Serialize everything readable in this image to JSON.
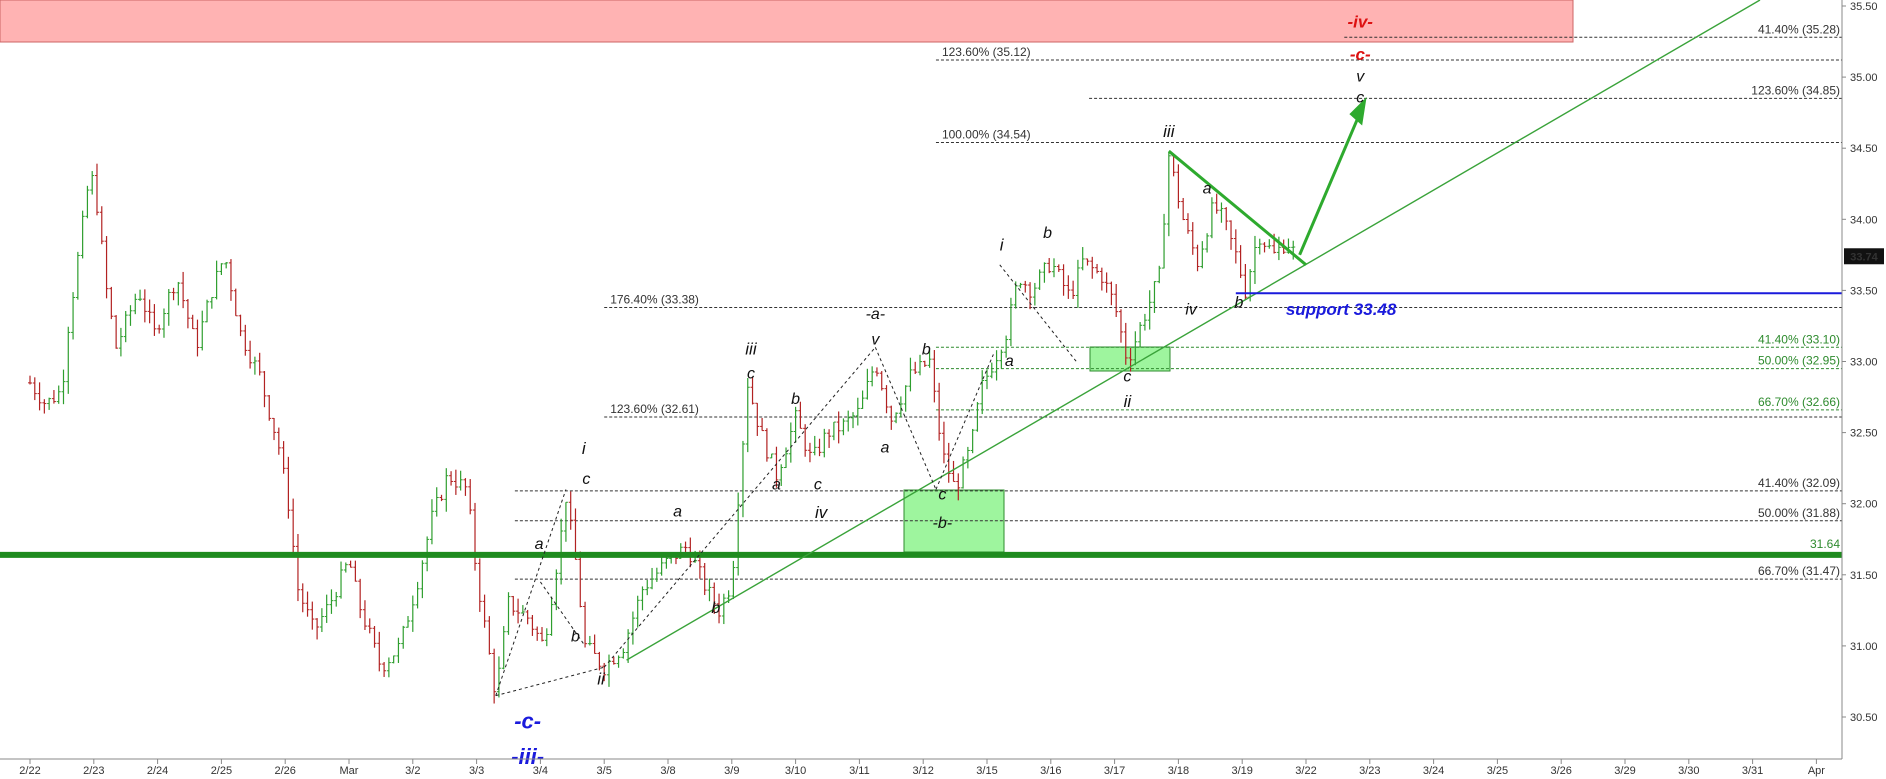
{
  "chart_data": {
    "type": "candlestick",
    "y_axis": {
      "range": [
        30.35,
        35.55
      ],
      "ticks": [
        "35.50",
        "35.00",
        "34.50",
        "34.00",
        "33.50",
        "33.00",
        "32.50",
        "32.00",
        "31.50",
        "31.00",
        "30.50"
      ],
      "last_price": "33.74"
    },
    "x_axis": {
      "tick_labels": [
        "2/22",
        "2/23",
        "2/24",
        "2/25",
        "2/26",
        "Mar",
        "3/2",
        "3/3",
        "3/4",
        "3/5",
        "3/8",
        "3/9",
        "3/10",
        "3/11",
        "3/12",
        "3/15",
        "3/16",
        "3/17",
        "3/18",
        "3/19",
        "3/22",
        "3/23",
        "3/24",
        "3/25",
        "3/26",
        "3/29",
        "3/30",
        "3/31",
        "Apr"
      ]
    },
    "price_path": [
      [
        0,
        32.85
      ],
      [
        0.25,
        32.7
      ],
      [
        0.5,
        32.8
      ],
      [
        0.6,
        33.25
      ],
      [
        0.9,
        34.2
      ],
      [
        1.0,
        34.3
      ],
      [
        1.2,
        33.5
      ],
      [
        1.35,
        33.1
      ],
      [
        1.7,
        33.5
      ],
      [
        1.95,
        33.2
      ],
      [
        2.3,
        33.6
      ],
      [
        2.6,
        33.1
      ],
      [
        2.85,
        33.5
      ],
      [
        3.05,
        33.75
      ],
      [
        3.3,
        33.2
      ],
      [
        3.6,
        32.9
      ],
      [
        3.9,
        32.4
      ],
      [
        4.05,
        32.0
      ],
      [
        4.2,
        31.4
      ],
      [
        4.45,
        31.1
      ],
      [
        4.7,
        31.3
      ],
      [
        5.0,
        31.6
      ],
      [
        5.15,
        31.3
      ],
      [
        5.5,
        30.85
      ],
      [
        5.8,
        31.0
      ],
      [
        6.1,
        31.5
      ],
      [
        6.3,
        31.9
      ],
      [
        6.55,
        32.2
      ],
      [
        6.85,
        32.1
      ],
      [
        7.0,
        31.5
      ],
      [
        7.3,
        30.65
      ],
      [
        7.5,
        31.3
      ],
      [
        7.8,
        31.2
      ],
      [
        8.05,
        31.0
      ],
      [
        8.3,
        31.7
      ],
      [
        8.4,
        32.05
      ],
      [
        8.55,
        31.6
      ],
      [
        8.7,
        31.0
      ],
      [
        9.0,
        30.85
      ],
      [
        9.3,
        31.0
      ],
      [
        9.6,
        31.4
      ],
      [
        10.0,
        31.6
      ],
      [
        10.3,
        31.7
      ],
      [
        10.6,
        31.4
      ],
      [
        10.8,
        31.25
      ],
      [
        11.0,
        31.45
      ],
      [
        11.1,
        32.05
      ],
      [
        11.25,
        32.85
      ],
      [
        11.45,
        32.5
      ],
      [
        11.7,
        32.2
      ],
      [
        12.0,
        32.6
      ],
      [
        12.25,
        32.3
      ],
      [
        12.5,
        32.5
      ],
      [
        12.75,
        32.55
      ],
      [
        13.0,
        32.65
      ],
      [
        13.25,
        33.0
      ],
      [
        13.5,
        32.6
      ],
      [
        13.8,
        32.9
      ],
      [
        14.1,
        33.0
      ],
      [
        14.3,
        32.35
      ],
      [
        14.5,
        32.1
      ],
      [
        14.75,
        32.4
      ],
      [
        14.9,
        32.8
      ],
      [
        15.1,
        33.0
      ],
      [
        15.3,
        33.2
      ],
      [
        15.5,
        33.6
      ],
      [
        15.7,
        33.5
      ],
      [
        16.0,
        33.7
      ],
      [
        16.3,
        33.45
      ],
      [
        16.5,
        33.7
      ],
      [
        16.8,
        33.6
      ],
      [
        17.0,
        33.4
      ],
      [
        17.2,
        33.0
      ],
      [
        17.45,
        33.3
      ],
      [
        17.7,
        33.6
      ],
      [
        17.85,
        34.45
      ],
      [
        18.1,
        33.95
      ],
      [
        18.3,
        33.7
      ],
      [
        18.55,
        34.1
      ],
      [
        18.7,
        34.0
      ],
      [
        18.9,
        33.75
      ],
      [
        19.05,
        33.5
      ],
      [
        19.25,
        33.9
      ],
      [
        19.5,
        33.75
      ],
      [
        19.7,
        33.85
      ],
      [
        19.85,
        33.74
      ]
    ],
    "annotations": {
      "fib_levels": [
        {
          "label": "41.40% (35.28)",
          "value": 35.28,
          "x_start": 20.6,
          "color": "#333333"
        },
        {
          "label": "123.60% (35.12)",
          "value": 35.12,
          "x_start": 14.2,
          "color": "#333333"
        },
        {
          "label": "123.60% (34.85)",
          "value": 34.85,
          "x_start": 16.6,
          "color": "#333333"
        },
        {
          "label": "100.00% (34.54)",
          "value": 34.54,
          "x_start": 14.2,
          "color": "#333333"
        },
        {
          "label": "176.40% (33.38)",
          "value": 33.38,
          "x_start": 9.0,
          "color": "#333333"
        },
        {
          "label": "41.40% (33.10)",
          "value": 33.1,
          "x_start": 14.2,
          "color": "#2e8b2e"
        },
        {
          "label": "50.00% (32.95)",
          "value": 32.95,
          "x_start": 14.2,
          "color": "#2e8b2e"
        },
        {
          "label": "66.70% (32.66)",
          "value": 32.66,
          "x_start": 14.2,
          "color": "#2e8b2e"
        },
        {
          "label": "123.60% (32.61)",
          "value": 32.61,
          "x_start": 9.0,
          "color": "#333333"
        },
        {
          "label": "41.40% (32.09)",
          "value": 32.09,
          "x_start": 7.6,
          "color": "#333333"
        },
        {
          "label": "50.00% (31.88)",
          "value": 31.88,
          "x_start": 7.6,
          "color": "#333333"
        },
        {
          "label": "66.70% (31.47)",
          "value": 31.47,
          "x_start": 7.6,
          "color": "#333333"
        }
      ],
      "horizontal_line_label": "31.64",
      "horizontal_line_value": 31.64,
      "support_label": "support 33.48",
      "support_value": 33.48,
      "wave_labels": [
        {
          "text": "-iv-",
          "x": 20.85,
          "y": 35.35,
          "color": "#dd1111",
          "size": 17
        },
        {
          "text": "-c-",
          "x": 20.85,
          "y": 35.12,
          "color": "#dd1111",
          "size": 17
        },
        {
          "text": "v",
          "x": 20.85,
          "y": 34.97,
          "color": "#111111",
          "size": 16
        },
        {
          "text": "c",
          "x": 20.85,
          "y": 34.82,
          "color": "#111111",
          "size": 16
        },
        {
          "text": "iii",
          "x": 17.85,
          "y": 34.58,
          "color": "#111111",
          "size": 17
        },
        {
          "text": "a",
          "x": 18.45,
          "y": 34.18,
          "color": "#111111",
          "size": 16
        },
        {
          "text": "b",
          "x": 15.95,
          "y": 33.87,
          "color": "#111111",
          "size": 16
        },
        {
          "text": "i",
          "x": 15.23,
          "y": 33.78,
          "color": "#111111",
          "size": 17
        },
        {
          "text": "-a-",
          "x": 13.25,
          "y": 33.3,
          "color": "#111111",
          "size": 16
        },
        {
          "text": "v",
          "x": 13.25,
          "y": 33.12,
          "color": "#111111",
          "size": 16
        },
        {
          "text": "b",
          "x": 14.05,
          "y": 33.05,
          "color": "#111111",
          "size": 16
        },
        {
          "text": "a",
          "x": 15.35,
          "y": 32.97,
          "color": "#111111",
          "size": 16
        },
        {
          "text": "iv",
          "x": 18.2,
          "y": 33.33,
          "color": "#111111",
          "size": 16
        },
        {
          "text": "b",
          "x": 18.95,
          "y": 33.38,
          "color": "#111111",
          "size": 16
        },
        {
          "text": "c",
          "x": 17.2,
          "y": 32.86,
          "color": "#111111",
          "size": 16
        },
        {
          "text": "ii",
          "x": 17.2,
          "y": 32.68,
          "color": "#111111",
          "size": 17
        },
        {
          "text": "iii",
          "x": 11.3,
          "y": 33.05,
          "color": "#111111",
          "size": 17
        },
        {
          "text": "c",
          "x": 11.3,
          "y": 32.88,
          "color": "#111111",
          "size": 16
        },
        {
          "text": "b",
          "x": 12.0,
          "y": 32.7,
          "color": "#111111",
          "size": 16
        },
        {
          "text": "a",
          "x": 13.4,
          "y": 32.36,
          "color": "#111111",
          "size": 16
        },
        {
          "text": "a",
          "x": 11.7,
          "y": 32.1,
          "color": "#111111",
          "size": 16
        },
        {
          "text": "c",
          "x": 12.35,
          "y": 32.1,
          "color": "#111111",
          "size": 16
        },
        {
          "text": "iv",
          "x": 12.4,
          "y": 31.9,
          "color": "#111111",
          "size": 17
        },
        {
          "text": "c",
          "x": 14.3,
          "y": 32.03,
          "color": "#111111",
          "size": 16
        },
        {
          "text": "-b-",
          "x": 14.3,
          "y": 31.83,
          "color": "#111111",
          "size": 16
        },
        {
          "text": "i",
          "x": 8.68,
          "y": 32.35,
          "color": "#111111",
          "size": 17
        },
        {
          "text": "c",
          "x": 8.72,
          "y": 32.14,
          "color": "#111111",
          "size": 16
        },
        {
          "text": "a",
          "x": 10.15,
          "y": 31.91,
          "color": "#111111",
          "size": 16
        },
        {
          "text": "a",
          "x": 7.98,
          "y": 31.68,
          "color": "#111111",
          "size": 16
        },
        {
          "text": "b",
          "x": 8.55,
          "y": 31.03,
          "color": "#111111",
          "size": 16
        },
        {
          "text": "b",
          "x": 10.75,
          "y": 31.23,
          "color": "#111111",
          "size": 16
        },
        {
          "text": "ii",
          "x": 8.95,
          "y": 30.73,
          "color": "#111111",
          "size": 17
        },
        {
          "text": "-c-",
          "x": 7.8,
          "y": 30.42,
          "color": "#1a1adc",
          "size": 22
        },
        {
          "text": "-iii-",
          "x": 7.8,
          "y": 30.17,
          "color": "#1a1adc",
          "size": 22
        }
      ]
    },
    "colors": {
      "bull_candle": "#2e9e2e",
      "bear_candle": "#b22222",
      "green_line": "#1f8b1f",
      "support_line": "#1a1adc",
      "red_zone": "#ffb3b3",
      "green_zone": "#9ef59e"
    }
  }
}
